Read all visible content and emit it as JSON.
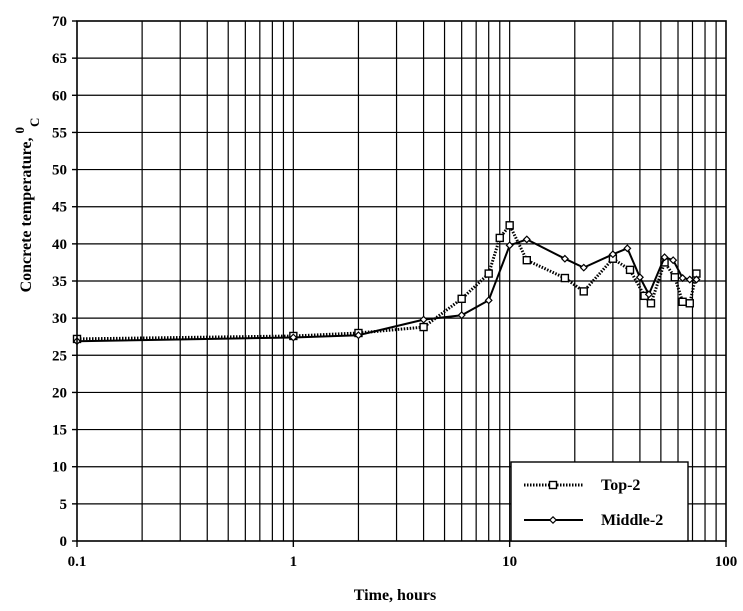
{
  "chart_data": {
    "type": "line",
    "x_scale": "log",
    "xlim": [
      0.1,
      100
    ],
    "ylim": [
      0,
      70
    ],
    "grid": true,
    "xlabel": "Time, hours",
    "ylabel_main": "Concrete temperature, ",
    "ylabel_sup": "0",
    "ylabel_sub": "C",
    "x_ticks": [
      0.1,
      1,
      10,
      100
    ],
    "x_tick_labels": [
      "0.1",
      "1",
      "10",
      "100"
    ],
    "y_ticks": [
      0,
      5,
      10,
      15,
      20,
      25,
      30,
      35,
      40,
      45,
      50,
      55,
      60,
      65,
      70
    ],
    "y_tick_labels": [
      "0",
      "5",
      "10",
      "15",
      "20",
      "25",
      "30",
      "35",
      "40",
      "45",
      "50",
      "55",
      "60",
      "65",
      "70"
    ],
    "legend_position": "bottom-right",
    "series": [
      {
        "name": "Top-2",
        "marker": "square",
        "line_style": "dotted-thick",
        "color": "#000000",
        "x": [
          0.1,
          1,
          2,
          4,
          6,
          8,
          9,
          10,
          12,
          18,
          22,
          30,
          36,
          42,
          45,
          52,
          58,
          63,
          68,
          73
        ],
        "y": [
          27.2,
          27.6,
          28.0,
          28.8,
          32.6,
          36.0,
          40.8,
          42.5,
          37.8,
          35.4,
          33.6,
          38.0,
          36.5,
          33.0,
          32.0,
          37.5,
          35.5,
          32.2,
          32.0,
          36.0
        ]
      },
      {
        "name": "Middle-2",
        "marker": "diamond",
        "line_style": "solid",
        "color": "#000000",
        "x": [
          0.1,
          1,
          2,
          4,
          6,
          8,
          10,
          12,
          18,
          22,
          30,
          35,
          40,
          44,
          52,
          57,
          63,
          68,
          73
        ],
        "y": [
          26.9,
          27.4,
          27.7,
          29.8,
          30.4,
          32.4,
          39.8,
          40.6,
          38.0,
          36.8,
          38.6,
          39.4,
          35.5,
          33.2,
          38.2,
          37.8,
          35.4,
          35.2,
          35.2
        ]
      }
    ]
  }
}
